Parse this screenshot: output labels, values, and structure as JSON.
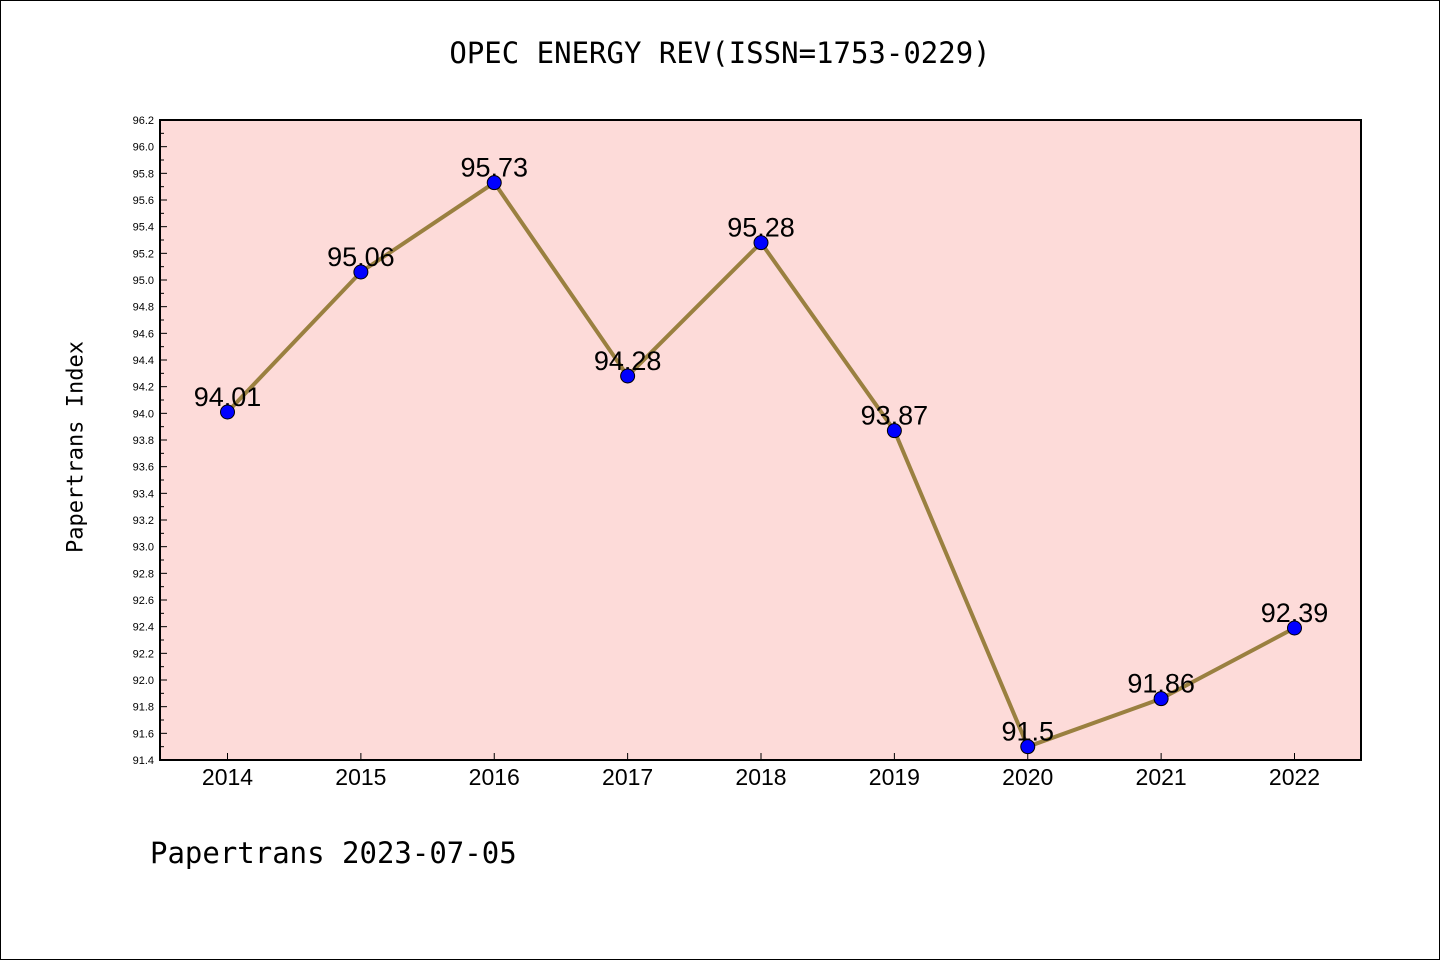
{
  "chart_data": {
    "type": "line",
    "title": "OPEC ENERGY REV(ISSN=1753-0229)",
    "xlabel": "",
    "ylabel": "Papertrans Index",
    "categories": [
      "2014",
      "2015",
      "2016",
      "2017",
      "2018",
      "2019",
      "2020",
      "2021",
      "2022"
    ],
    "series": [
      {
        "values": [
          94.01,
          95.06,
          95.73,
          94.28,
          95.28,
          93.87,
          91.5,
          91.86,
          92.39
        ],
        "labels": [
          "94.01",
          "95.06",
          "95.73",
          "94.28",
          "95.28",
          "93.87",
          "91.5",
          "91.86",
          "92.39"
        ]
      }
    ],
    "ylim": [
      91.4,
      96.2
    ],
    "yticks": [
      "91.4",
      "91.6",
      "91.8",
      "92.0",
      "92.2",
      "92.4",
      "92.6",
      "92.8",
      "93.0",
      "93.2",
      "93.4",
      "93.6",
      "93.8",
      "94.0",
      "94.2",
      "94.4",
      "94.6",
      "94.8",
      "95.0",
      "95.2",
      "95.4",
      "95.6",
      "95.8",
      "96.0",
      "96.2"
    ],
    "grid": false,
    "colors": {
      "plot_background": "#fddbd9",
      "line": "#9a8040",
      "marker": "#0000ff"
    }
  },
  "footer": "Papertrans 2023-07-05"
}
